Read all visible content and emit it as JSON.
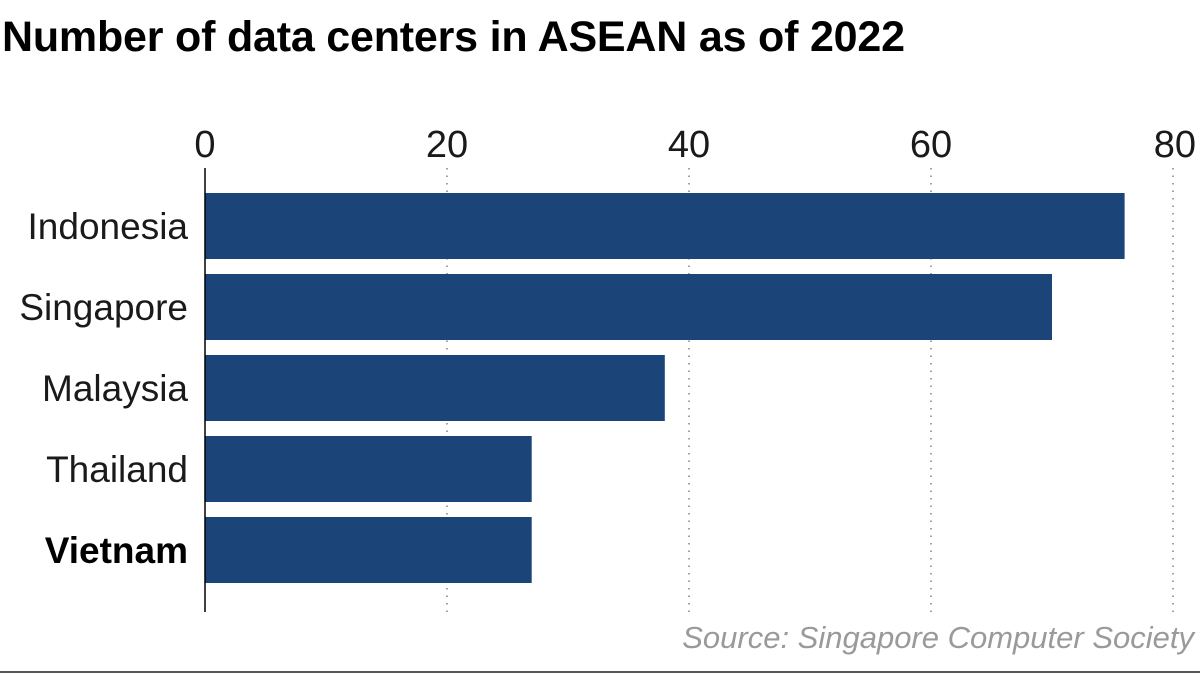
{
  "chart_data": {
    "type": "bar",
    "orientation": "horizontal",
    "title": "Number of data centers in ASEAN as of 2022",
    "categories": [
      "Indonesia",
      "Singapore",
      "Malaysia",
      "Thailand",
      "Vietnam"
    ],
    "highlight": "Vietnam",
    "values": [
      76,
      70,
      38,
      27,
      27
    ],
    "xlim": [
      0,
      80
    ],
    "xticks": [
      "0",
      "20",
      "40",
      "60",
      "80"
    ],
    "xaxis_position": "top",
    "grid": "vertical dotted",
    "xlabel": "",
    "ylabel": "",
    "bar_color": "#1b4479",
    "source": "Source: Singapore Computer Society"
  }
}
